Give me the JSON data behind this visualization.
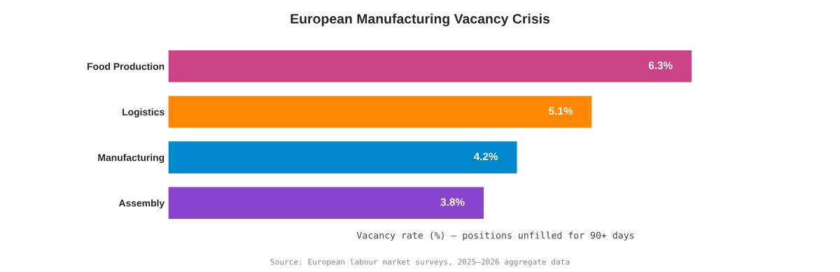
{
  "chart_data": {
    "type": "bar",
    "orientation": "horizontal",
    "title": "European Manufacturing Vacancy Crisis",
    "categories": [
      "Food Production",
      "Logistics",
      "Manufacturing",
      "Assembly"
    ],
    "values": [
      6.3,
      5.1,
      4.2,
      3.8
    ],
    "colors": [
      "#cc4488",
      "#ff8800",
      "#0088cc",
      "#8844cc"
    ],
    "value_labels": [
      "6.3%",
      "5.1%",
      "4.2%",
      "3.8%"
    ],
    "xlabel": "Vacancy rate (%) — positions unfilled for 90+ days",
    "annotations": [
      "Source: European labour market surveys, 2025–2026 aggregate data"
    ],
    "grid": false,
    "legend": false,
    "tick_labels": "y"
  }
}
